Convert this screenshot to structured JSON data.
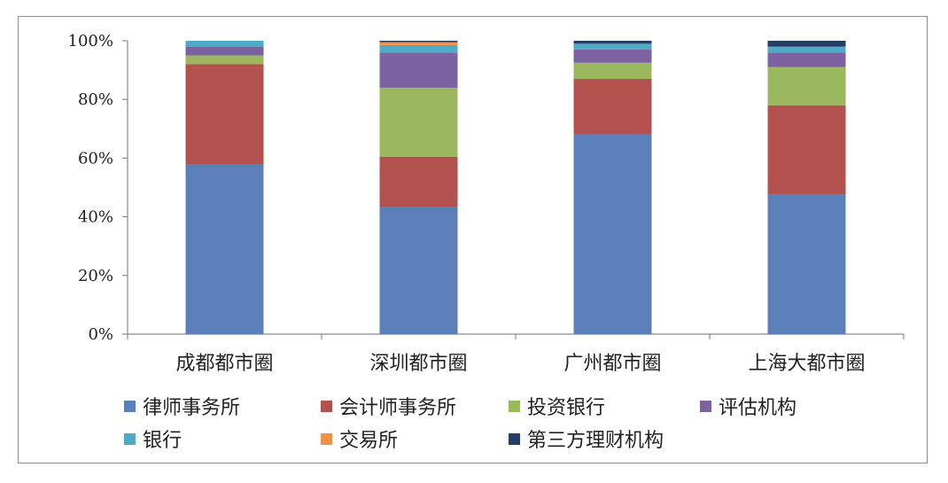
{
  "chart_data": {
    "type": "bar",
    "stacked": true,
    "percent_stacked": true,
    "categories": [
      "成都都市圈",
      "深圳都市圈",
      "广州都市圈",
      "上海大都市圈"
    ],
    "y_ticks": [
      "0%",
      "20%",
      "40%",
      "60%",
      "80%",
      "100%"
    ],
    "ylim": [
      0,
      100
    ],
    "grid": false,
    "legend_position": "bottom",
    "series": [
      {
        "name": "律师事务所",
        "color": "#5b7fb8",
        "values": [
          58,
          43.5,
          68,
          47.5
        ]
      },
      {
        "name": "会计师事务所",
        "color": "#b3514f",
        "values": [
          34,
          17,
          19,
          30.5
        ]
      },
      {
        "name": "投资银行",
        "color": "#9bb85e",
        "values": [
          3,
          23.5,
          5.5,
          13
        ]
      },
      {
        "name": "评估机构",
        "color": "#7c62a0",
        "values": [
          3,
          12,
          4.5,
          5
        ]
      },
      {
        "name": "银行",
        "color": "#4faac6",
        "values": [
          2,
          2.5,
          2,
          2
        ]
      },
      {
        "name": "交易所",
        "color": "#f0934a",
        "values": [
          0,
          1,
          0,
          0
        ]
      },
      {
        "name": "第三方理财机构",
        "color": "#243e65",
        "values": [
          0,
          0.5,
          1,
          2
        ]
      }
    ]
  }
}
